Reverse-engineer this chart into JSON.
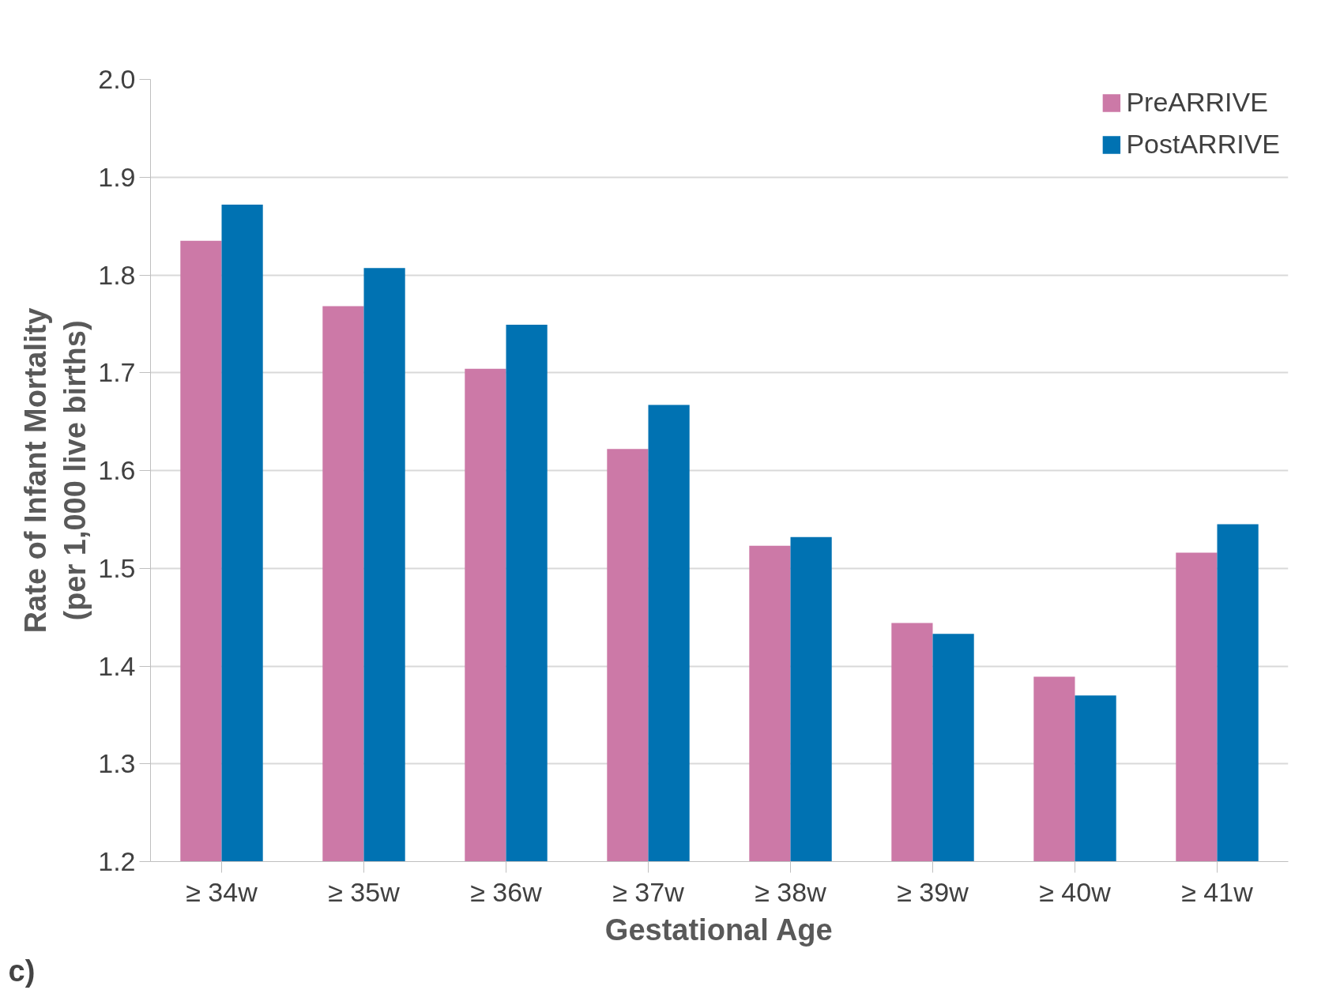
{
  "chart_data": {
    "type": "bar",
    "categories": [
      "≥ 34w",
      "≥ 35w",
      "≥ 36w",
      "≥ 37w",
      "≥ 38w",
      "≥ 39w",
      "≥ 40w",
      "≥ 41w"
    ],
    "series": [
      {
        "name": "PreARRIVE",
        "color": "#cc79a7",
        "values": [
          1.835,
          1.768,
          1.704,
          1.622,
          1.523,
          1.444,
          1.389,
          1.516
        ]
      },
      {
        "name": "PostARRIVE",
        "color": "#0072b2",
        "values": [
          1.872,
          1.807,
          1.749,
          1.667,
          1.532,
          1.433,
          1.37,
          1.545
        ]
      }
    ],
    "xlabel": "Gestational Age",
    "ylabel": "Rate of Infant Mortality\n(per 1,000 live births)",
    "ylim": [
      1.2,
      2.0
    ],
    "yticks": [
      {
        "value": 1.2,
        "label": "1.2"
      },
      {
        "value": 1.3,
        "label": "1.3"
      },
      {
        "value": 1.4,
        "label": "1.4"
      },
      {
        "value": 1.5,
        "label": "1.5"
      },
      {
        "value": 1.6,
        "label": "1.6"
      },
      {
        "value": 1.7,
        "label": "1.7"
      },
      {
        "value": 1.8,
        "label": "1.8"
      },
      {
        "value": 1.9,
        "label": "1.9"
      },
      {
        "value": 2.0,
        "label": "2.0"
      }
    ],
    "annotations": [
      "c)"
    ],
    "grid": "y",
    "legend": "top right"
  }
}
